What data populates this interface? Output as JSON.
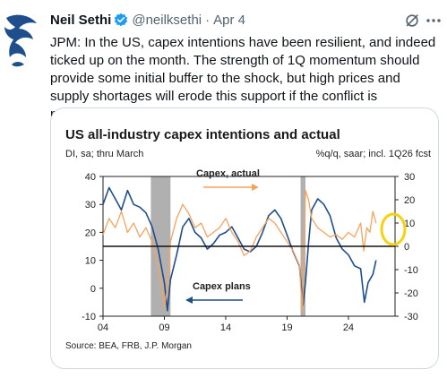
{
  "tweet": {
    "author_name": "Neil Sethi",
    "handle": "@neilksethi",
    "separator": "·",
    "date": "Apr 4",
    "text": "JPM: In the US, capex intentions have been resilient, and indeed ticked up on the month. The strength of 1Q momentum should provide some initial buffer to the shock, but high prices and supply shortages will erode this support if the conflict is prolonged."
  },
  "icons": {
    "verified": "verified-badge-icon",
    "grok": "grok-icon",
    "more": "more-options-icon"
  },
  "colors": {
    "verified_blue": "#1d9bf0",
    "actual_line": "#f7a35c",
    "plans_line": "#1f4e8c",
    "recession_band": "#b0b0b0",
    "highlight_circle": "#f5d20c",
    "chart_title": "#1a1a1a"
  },
  "chart_data": {
    "type": "line",
    "title": "US all-industry capex intentions and actual",
    "left_axis_note": "DI, sa; thru March",
    "right_axis_note": "%q/q, saar; incl. 1Q26 fcst",
    "annotation_actual": "Capex, actual",
    "annotation_plans": "Capex plans",
    "source": "Source: BEA, FRB, J.P. Morgan",
    "x_ticks": [
      "04",
      "09",
      "14",
      "19",
      "24"
    ],
    "y_left_ticks": [
      "40",
      "30",
      "20",
      "10",
      "0",
      "-10"
    ],
    "y_right_ticks": [
      "30",
      "20",
      "10",
      "0",
      "-10",
      "-20",
      "-30"
    ],
    "y_left_lim": [
      -10,
      40
    ],
    "y_right_lim": [
      -30,
      30
    ],
    "x_lim": [
      2004,
      2027.8
    ],
    "recession_shading": [
      [
        2007.9,
        2009.5
      ],
      [
        2020.1,
        2020.5
      ]
    ],
    "series": [
      {
        "name": "Capex plans",
        "axis": "left",
        "x": [
          2004.0,
          2004.5,
          2005.0,
          2005.5,
          2006.0,
          2006.5,
          2007.0,
          2007.5,
          2008.0,
          2008.5,
          2009.0,
          2009.25,
          2009.5,
          2010.0,
          2010.5,
          2011.0,
          2011.5,
          2012.0,
          2012.5,
          2013.0,
          2013.5,
          2014.0,
          2014.5,
          2015.0,
          2015.5,
          2016.0,
          2016.5,
          2017.0,
          2017.5,
          2018.0,
          2018.5,
          2019.0,
          2019.5,
          2020.0,
          2020.3,
          2020.5,
          2020.75,
          2021.0,
          2021.5,
          2022.0,
          2022.5,
          2023.0,
          2023.5,
          2024.0,
          2024.5,
          2025.0,
          2025.3,
          2025.6,
          2026.0,
          2026.25
        ],
        "y": [
          30,
          36,
          32,
          28,
          35,
          30,
          29,
          27,
          22,
          14,
          2,
          -8,
          3,
          12,
          22,
          25,
          20,
          18,
          14,
          16,
          19,
          20,
          22,
          18,
          14,
          13,
          15,
          20,
          26,
          28,
          25,
          19,
          13,
          8,
          -6,
          2,
          16,
          28,
          32,
          30,
          26,
          18,
          14,
          12,
          8,
          7,
          -5,
          2,
          5,
          10
        ]
      },
      {
        "name": "Capex, actual",
        "axis": "right",
        "x": [
          2004.0,
          2004.5,
          2005.0,
          2005.5,
          2006.0,
          2006.5,
          2007.0,
          2007.5,
          2008.0,
          2008.5,
          2009.0,
          2009.25,
          2009.5,
          2010.0,
          2010.5,
          2011.0,
          2011.5,
          2012.0,
          2012.5,
          2013.0,
          2013.5,
          2014.0,
          2014.5,
          2015.0,
          2015.5,
          2016.0,
          2016.5,
          2017.0,
          2017.5,
          2018.0,
          2018.5,
          2019.0,
          2019.5,
          2020.0,
          2020.25,
          2020.5,
          2020.75,
          2021.0,
          2021.5,
          2022.0,
          2022.5,
          2023.0,
          2023.5,
          2024.0,
          2024.5,
          2025.0,
          2025.25,
          2025.5,
          2025.75,
          2026.0,
          2026.25
        ],
        "y": [
          5,
          12,
          8,
          15,
          6,
          10,
          4,
          8,
          2,
          -8,
          -26,
          -18,
          2,
          12,
          18,
          14,
          8,
          10,
          4,
          6,
          8,
          12,
          6,
          2,
          -4,
          -2,
          4,
          8,
          12,
          10,
          6,
          2,
          -2,
          -8,
          -28,
          24,
          20,
          12,
          8,
          6,
          4,
          5,
          3,
          6,
          4,
          10,
          -2,
          8,
          6,
          15,
          10
        ]
      }
    ]
  }
}
